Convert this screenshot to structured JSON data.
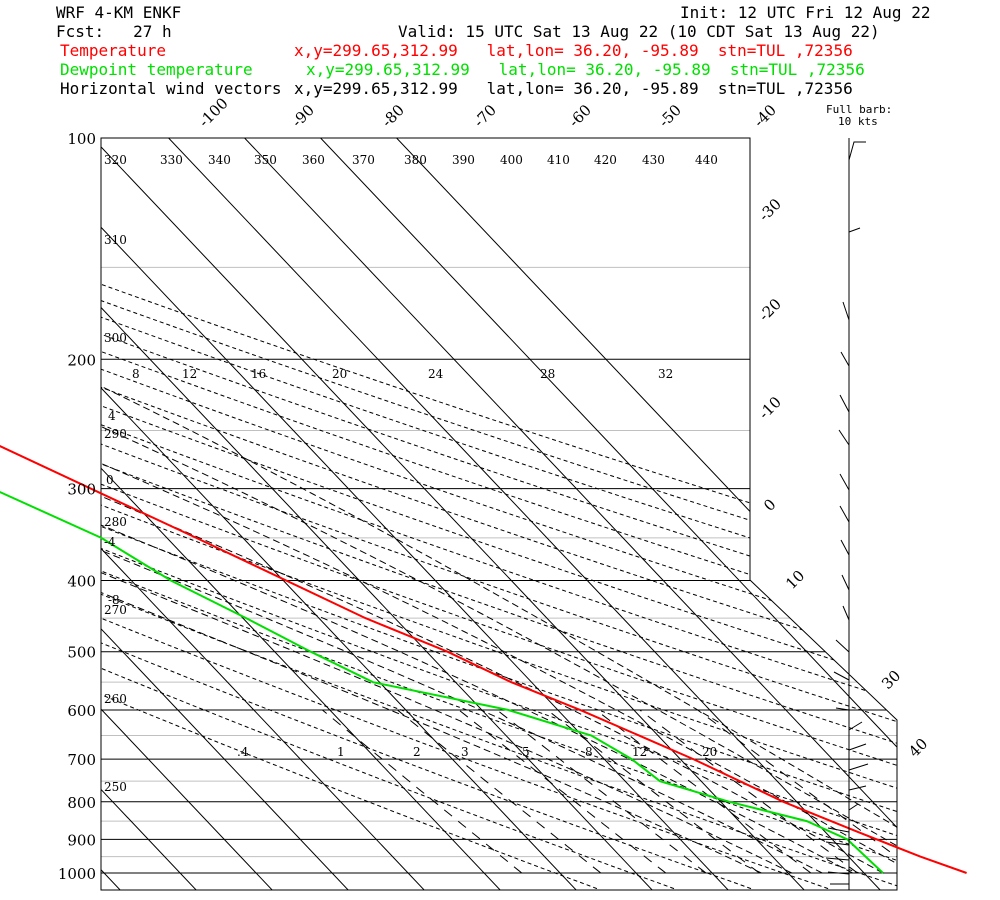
{
  "header": {
    "model": "WRF 4-KM ENKF",
    "init": "Init: 12 UTC Fri 12 Aug 22",
    "fcst": "Fcst:   27 h",
    "valid": "Valid: 15 UTC Sat 13 Aug 22 (10 CDT Sat 13 Aug 22)",
    "lines": [
      {
        "name": "Temperature",
        "info": "x,y=299.65,312.99   lat,lon= 36.20, -95.89  stn=TUL ,72356",
        "color": "#ff0000"
      },
      {
        "name": "Dewpoint temperature",
        "info": "x,y=299.65,312.99   lat,lon= 36.20, -95.89  stn=TUL ,72356",
        "color": "#00e000"
      },
      {
        "name": "Horizontal wind vectors",
        "info": "x,y=299.65,312.99   lat,lon= 36.20, -95.89  stn=TUL ,72356",
        "color": "#000000"
      }
    ],
    "barb_note_1": "Full barb:",
    "barb_note_2": "10 kts"
  },
  "chart_data": {
    "type": "skew-t",
    "pressure_ticks": [
      100,
      200,
      300,
      400,
      500,
      600,
      700,
      800,
      900,
      1000
    ],
    "temperature_labels_top": [
      "-100",
      "-90",
      "-80",
      "-70",
      "-60",
      "-50",
      "-40"
    ],
    "temperature_labels_right": [
      "-30",
      "-20",
      "-10",
      "0",
      "10",
      "30",
      "40"
    ],
    "dry_adiabat_labels_top": [
      "320",
      "330",
      "340",
      "350",
      "360",
      "370",
      "380",
      "390",
      "400",
      "410",
      "420",
      "430",
      "440"
    ],
    "dry_adiabat_labels_left": [
      "310",
      "300",
      "290",
      "280",
      "270",
      "260",
      "250"
    ],
    "moist_adiabat_labels": [
      "8",
      "12",
      "16",
      "20",
      "24",
      "28",
      "32"
    ],
    "left_small_labels": [
      "4",
      "0",
      "-4",
      "-8"
    ],
    "mixing_ratio_labels": [
      ".4",
      "1",
      "2",
      "3",
      "5",
      "8",
      "12",
      "20"
    ],
    "series": [
      {
        "name": "Temperature",
        "color": "#ff0000",
        "points": [
          [
            100,
            -68.1
          ],
          [
            150,
            -67.5
          ],
          [
            185,
            -58.5
          ],
          [
            250,
            -44
          ],
          [
            350,
            -27.5
          ],
          [
            450,
            -15.5
          ],
          [
            500,
            -9
          ],
          [
            550,
            -4.5
          ],
          [
            600,
            1
          ],
          [
            700,
            9.6
          ],
          [
            800,
            16
          ],
          [
            880,
            22
          ],
          [
            950,
            27
          ],
          [
            1000,
            31
          ]
        ]
      },
      {
        "name": "Dewpoint temperature",
        "color": "#00e000",
        "points": [
          [
            100,
            -78.2
          ],
          [
            130,
            -81.3
          ],
          [
            150,
            -80.8
          ],
          [
            190,
            -70.3
          ],
          [
            240,
            -58
          ],
          [
            300,
            -48
          ],
          [
            350,
            -40
          ],
          [
            400,
            -36.3
          ],
          [
            450,
            -31.2
          ],
          [
            500,
            -27
          ],
          [
            550,
            -22.7
          ],
          [
            600,
            -8.5
          ],
          [
            650,
            -0.8
          ],
          [
            700,
            1.5
          ],
          [
            750,
            2.4
          ],
          [
            800,
            8.9
          ],
          [
            850,
            16.6
          ],
          [
            900,
            19.6
          ],
          [
            1000,
            20
          ]
        ]
      }
    ],
    "wind_profile_present": true
  }
}
